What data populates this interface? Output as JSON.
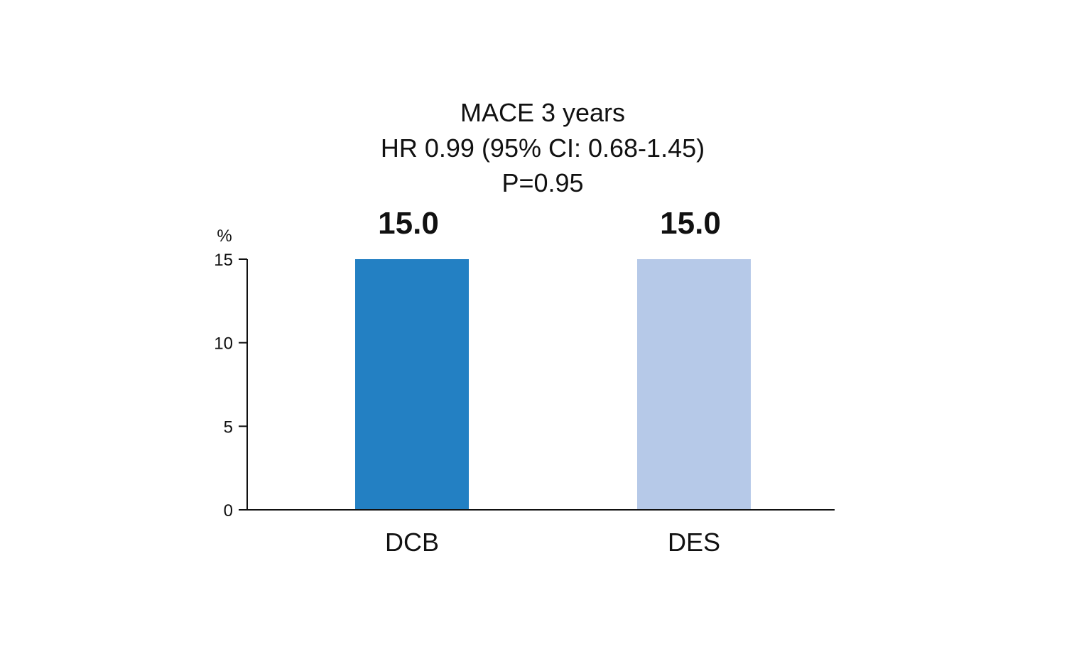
{
  "chart_data": {
    "type": "bar",
    "title_lines": [
      "MACE 3 years",
      "HR 0.99 (95% CI: 0.68-1.45)",
      "P=0.95"
    ],
    "ylabel": "%",
    "xlabel": "",
    "ylim": [
      0,
      15
    ],
    "yticks": [
      0,
      5,
      10,
      15
    ],
    "grid": false,
    "categories": [
      "DCB",
      "DES"
    ],
    "values": [
      15.0,
      15.0
    ],
    "data_labels": [
      "15.0",
      "15.0"
    ],
    "colors": [
      "#2380c3",
      "#b6c9e8"
    ]
  }
}
